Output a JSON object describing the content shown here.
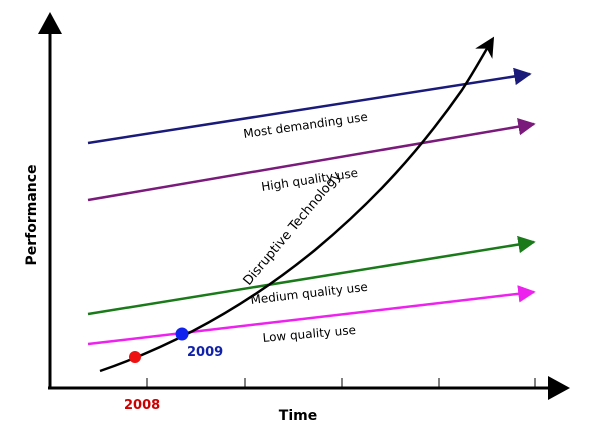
{
  "axes": {
    "y_title": "Performance",
    "x_title": "Time"
  },
  "curve": {
    "label": "Disruptive Technology",
    "color": "#000000"
  },
  "trajectories": [
    {
      "label": "Most demanding use",
      "color": "#1a1a7a"
    },
    {
      "label": "High quality use",
      "color": "#7a1a7a"
    },
    {
      "label": "Medium quality use",
      "color": "#1a7a1a"
    },
    {
      "label": "Low quality use",
      "color": "#ee22ee"
    }
  ],
  "points": [
    {
      "label": "2008",
      "color": "#ee1111",
      "label_color": "#cc0000"
    },
    {
      "label": "2009",
      "color": "#1122ee",
      "label_color": "#1122aa"
    }
  ]
}
